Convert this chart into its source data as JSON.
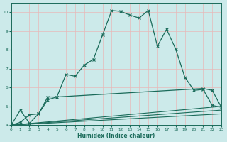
{
  "xlabel": "Humidex (Indice chaleur)",
  "xlim": [
    0,
    23
  ],
  "ylim": [
    4,
    10.5
  ],
  "yticks": [
    4,
    5,
    6,
    7,
    8,
    9,
    10
  ],
  "xticks": [
    0,
    1,
    2,
    3,
    4,
    5,
    6,
    7,
    8,
    9,
    10,
    11,
    12,
    13,
    14,
    15,
    16,
    17,
    18,
    19,
    20,
    21,
    22,
    23
  ],
  "bg_color": "#cceaea",
  "grid_color": "#e8b8b8",
  "line_color": "#1a6b5a",
  "line1_x": [
    0,
    1,
    2,
    3,
    4,
    5,
    6,
    7,
    8,
    9,
    10,
    11,
    12,
    13,
    14,
    15,
    16,
    17,
    18,
    19,
    20,
    21,
    22,
    23
  ],
  "line1_y": [
    4.0,
    4.8,
    4.1,
    4.6,
    5.5,
    5.5,
    6.7,
    6.6,
    7.2,
    7.5,
    8.8,
    10.1,
    10.05,
    9.85,
    9.7,
    10.1,
    8.2,
    9.1,
    8.05,
    6.55,
    5.85,
    5.9,
    5.05,
    4.95
  ],
  "line2_x": [
    0,
    1,
    2,
    3,
    4,
    5,
    21,
    22,
    23
  ],
  "line2_y": [
    4.0,
    4.15,
    4.55,
    4.6,
    5.35,
    5.5,
    5.95,
    5.85,
    4.95
  ],
  "line3_x": [
    0,
    23
  ],
  "line3_y": [
    4.0,
    5.0
  ],
  "line4_x": [
    0,
    23
  ],
  "line4_y": [
    4.0,
    4.8
  ],
  "line5_x": [
    0,
    23
  ],
  "line5_y": [
    4.0,
    4.6
  ]
}
